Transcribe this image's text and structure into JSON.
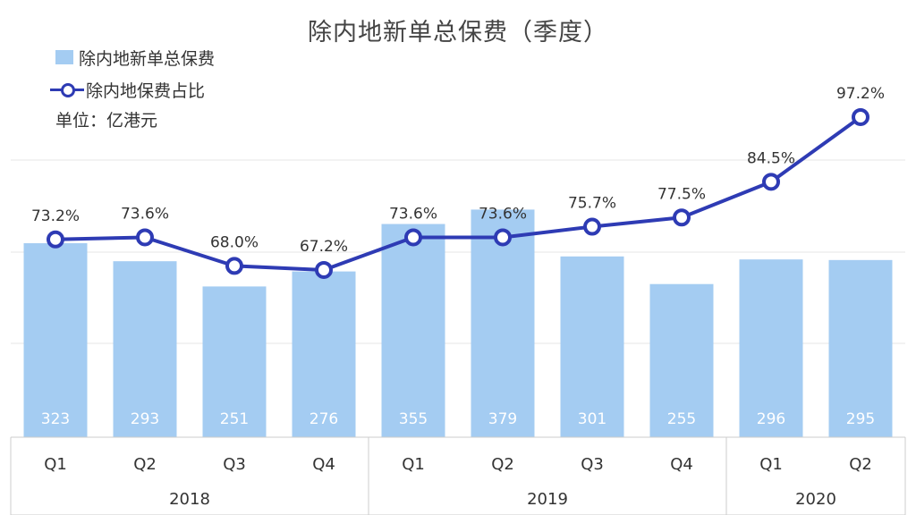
{
  "chart_data": {
    "type": "bar",
    "title": "除内地新单总保费（季度）",
    "unit": "单位：亿港元",
    "categories": [
      "Q1",
      "Q2",
      "Q3",
      "Q4",
      "Q1",
      "Q2",
      "Q3",
      "Q4",
      "Q1",
      "Q2"
    ],
    "groups": [
      {
        "label": "2018",
        "count": 4
      },
      {
        "label": "2019",
        "count": 4
      },
      {
        "label": "2020",
        "count": 2
      }
    ],
    "series": [
      {
        "name": "除内地新单总保费",
        "type": "bar",
        "color": "#a4ccf2",
        "values": [
          323,
          293,
          251,
          276,
          355,
          379,
          301,
          255,
          296,
          295
        ]
      },
      {
        "name": "除内地保费占比",
        "type": "line",
        "color": "#2e3bb4",
        "values": [
          73.2,
          73.6,
          68.0,
          67.2,
          73.6,
          73.6,
          75.7,
          77.5,
          84.5,
          97.2
        ],
        "labels": [
          "73.2%",
          "73.6%",
          "68.0%",
          "67.2%",
          "73.6%",
          "73.6%",
          "75.7%",
          "77.5%",
          "84.5%",
          "97.2%"
        ]
      }
    ],
    "grid": true,
    "legend_position": "top-left"
  }
}
